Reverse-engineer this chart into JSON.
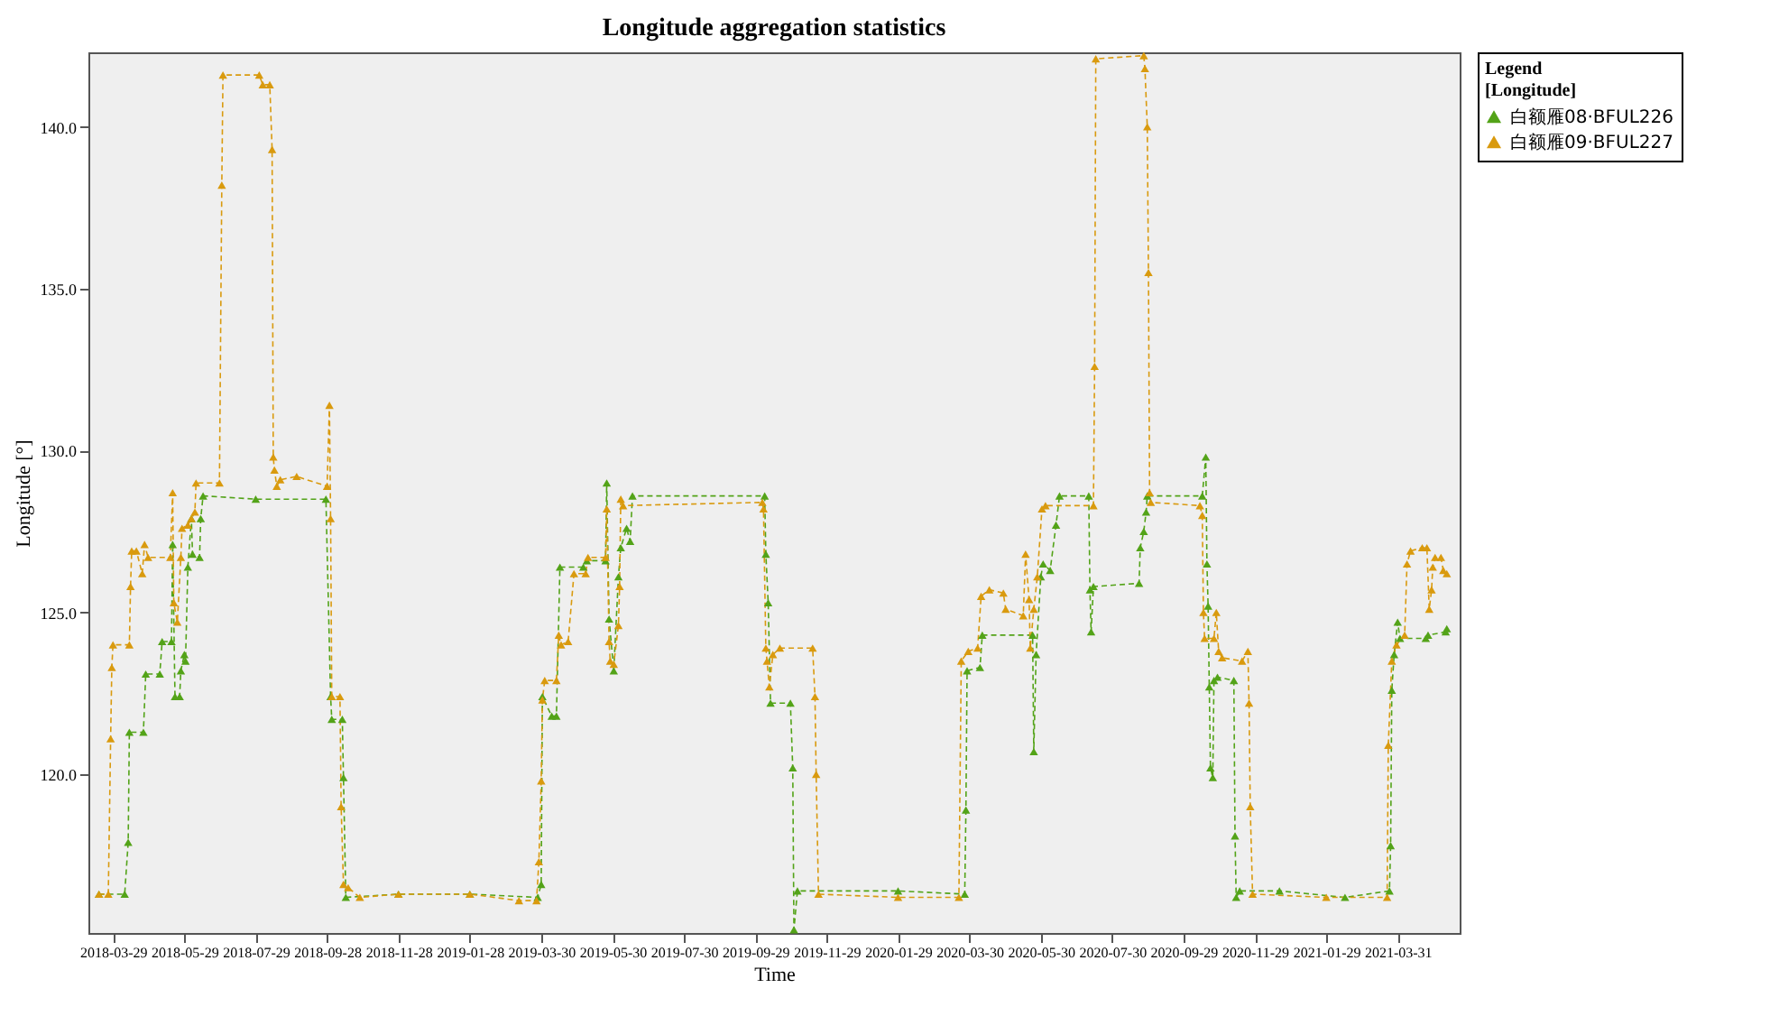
{
  "chart_data": {
    "type": "line",
    "title": "Longitude aggregation statistics",
    "xlabel": "Time",
    "ylabel": "Longitude [°]",
    "legend_title": "Legend\n[Longitude]",
    "legend": "right",
    "marker": "triangle",
    "line_style": "dashed",
    "grid": false,
    "xlim": [
      "2018-03-08",
      "2021-05-23"
    ],
    "xticks": [
      "2018-03-29",
      "2018-05-29",
      "2018-07-29",
      "2018-09-28",
      "2018-11-28",
      "2019-01-28",
      "2019-03-30",
      "2019-05-30",
      "2019-07-30",
      "2019-09-29",
      "2019-11-29",
      "2020-01-29",
      "2020-03-30",
      "2020-05-30",
      "2020-07-30",
      "2020-09-29",
      "2020-11-29",
      "2021-01-29",
      "2021-03-31"
    ],
    "ylim": [
      115.1,
      142.3
    ],
    "yticks": [
      {
        "value": 120,
        "label": "120.0"
      },
      {
        "value": 125,
        "label": "125.0"
      },
      {
        "value": 130,
        "label": "130.0"
      },
      {
        "value": 135,
        "label": "135.0"
      },
      {
        "value": 140,
        "label": "140.0"
      }
    ],
    "series": [
      {
        "name": "白额雁08·BFUL226",
        "color": "#53a318",
        "x": [
          "2018-03-17",
          "2018-04-08",
          "2018-04-11",
          "2018-04-12",
          "2018-04-24",
          "2018-04-26",
          "2018-05-08",
          "2018-05-10",
          "2018-05-18",
          "2018-05-19",
          "2018-05-21",
          "2018-05-25",
          "2018-05-26",
          "2018-05-29",
          "2018-05-30",
          "2018-06-01",
          "2018-06-04",
          "2018-06-05",
          "2018-06-11",
          "2018-06-12",
          "2018-06-14",
          "2018-07-29",
          "2018-09-27",
          "2018-10-01",
          "2018-10-02",
          "2018-10-11",
          "2018-10-12",
          "2018-10-14",
          "2018-11-28",
          "2019-01-28",
          "2019-03-27",
          "2019-03-30",
          "2019-03-31",
          "2019-04-08",
          "2019-04-12",
          "2019-04-15",
          "2019-05-05",
          "2019-05-08",
          "2019-05-24",
          "2019-05-25",
          "2019-05-27",
          "2019-05-31",
          "2019-06-04",
          "2019-06-06",
          "2019-06-11",
          "2019-06-14",
          "2019-06-16",
          "2019-10-07",
          "2019-10-08",
          "2019-10-10",
          "2019-10-12",
          "2019-10-29",
          "2019-10-31",
          "2019-11-01",
          "2019-11-04",
          "2020-01-29",
          "2020-03-26",
          "2020-03-27",
          "2020-03-28",
          "2020-04-08",
          "2020-04-10",
          "2020-05-23",
          "2020-05-24",
          "2020-05-26",
          "2020-05-30",
          "2020-06-01",
          "2020-06-07",
          "2020-06-12",
          "2020-06-15",
          "2020-07-10",
          "2020-07-11",
          "2020-07-12",
          "2020-07-14",
          "2020-08-22",
          "2020-08-23",
          "2020-08-26",
          "2020-08-28",
          "2020-08-29",
          "2020-10-15",
          "2020-10-18",
          "2020-10-19",
          "2020-10-20",
          "2020-10-21",
          "2020-10-22",
          "2020-10-24",
          "2020-10-25",
          "2020-10-28",
          "2020-11-11",
          "2020-11-12",
          "2020-11-13",
          "2020-11-16",
          "2020-12-20",
          "2021-02-14",
          "2021-03-24",
          "2021-03-25",
          "2021-03-26",
          "2021-03-28",
          "2021-03-31",
          "2021-04-02",
          "2021-04-24",
          "2021-04-26",
          "2021-05-11",
          "2021-05-12"
        ],
        "values": [
          116.3,
          116.3,
          117.9,
          121.3,
          121.3,
          123.1,
          123.1,
          124.1,
          124.1,
          127.1,
          122.4,
          122.4,
          123.2,
          123.7,
          123.5,
          126.4,
          127.9,
          126.8,
          126.7,
          127.9,
          128.6,
          128.5,
          128.5,
          122.4,
          121.7,
          121.7,
          119.9,
          116.2,
          116.3,
          116.3,
          116.2,
          116.6,
          122.4,
          121.8,
          121.8,
          126.4,
          126.4,
          126.6,
          126.6,
          129.0,
          124.8,
          123.2,
          126.1,
          127.0,
          127.6,
          127.2,
          128.6,
          128.6,
          126.8,
          125.3,
          122.2,
          122.2,
          120.2,
          115.2,
          116.4,
          116.4,
          116.3,
          118.9,
          123.2,
          123.3,
          124.3,
          124.3,
          120.7,
          123.7,
          126.1,
          126.5,
          126.3,
          127.7,
          128.6,
          128.6,
          125.7,
          124.4,
          125.8,
          125.9,
          127.0,
          127.5,
          128.1,
          128.6,
          128.6,
          129.8,
          126.5,
          125.2,
          122.7,
          120.2,
          119.9,
          122.9,
          123.0,
          122.9,
          118.1,
          116.2,
          116.4,
          116.4,
          116.2,
          116.4,
          117.8,
          122.6,
          123.7,
          124.7,
          124.2,
          124.2,
          124.3,
          124.4,
          124.5
        ]
      },
      {
        "name": "白额雁09·BFUL227",
        "color": "#d99a0e",
        "x": [
          "2018-03-17",
          "2018-03-25",
          "2018-03-27",
          "2018-03-28",
          "2018-03-29",
          "2018-04-12",
          "2018-04-13",
          "2018-04-14",
          "2018-04-18",
          "2018-04-23",
          "2018-04-25",
          "2018-04-28",
          "2018-05-17",
          "2018-05-19",
          "2018-05-20",
          "2018-05-23",
          "2018-05-26",
          "2018-05-27",
          "2018-06-01",
          "2018-06-04",
          "2018-06-07",
          "2018-06-08",
          "2018-06-28",
          "2018-06-30",
          "2018-07-01",
          "2018-08-01",
          "2018-08-04",
          "2018-08-10",
          "2018-08-12",
          "2018-08-13",
          "2018-08-14",
          "2018-08-16",
          "2018-08-19",
          "2018-09-02",
          "2018-09-28",
          "2018-09-30",
          "2018-10-01",
          "2018-10-02",
          "2018-10-09",
          "2018-10-10",
          "2018-10-12",
          "2018-10-16",
          "2018-10-26",
          "2018-11-28",
          "2019-01-28",
          "2019-03-11",
          "2019-03-26",
          "2019-03-28",
          "2019-03-30",
          "2019-03-31",
          "2019-04-02",
          "2019-04-12",
          "2019-04-14",
          "2019-04-16",
          "2019-04-22",
          "2019-04-27",
          "2019-05-07",
          "2019-05-09",
          "2019-05-24",
          "2019-05-25",
          "2019-05-27",
          "2019-05-28",
          "2019-05-31",
          "2019-06-04",
          "2019-06-05",
          "2019-06-06",
          "2019-06-08",
          "2019-10-05",
          "2019-10-06",
          "2019-10-08",
          "2019-10-09",
          "2019-10-11",
          "2019-10-14",
          "2019-10-20",
          "2019-11-17",
          "2019-11-19",
          "2019-11-20",
          "2019-11-22",
          "2020-01-29",
          "2020-03-21",
          "2020-03-23",
          "2020-03-29",
          "2020-04-06",
          "2020-04-09",
          "2020-04-16",
          "2020-04-28",
          "2020-04-30",
          "2020-05-15",
          "2020-05-17",
          "2020-05-20",
          "2020-05-21",
          "2020-05-24",
          "2020-05-27",
          "2020-05-31",
          "2020-06-03",
          "2020-07-14",
          "2020-07-15",
          "2020-07-16",
          "2020-08-26",
          "2020-08-27",
          "2020-08-29",
          "2020-08-30",
          "2020-08-31",
          "2020-09-01",
          "2020-10-13",
          "2020-10-15",
          "2020-10-16",
          "2020-10-17",
          "2020-10-25",
          "2020-10-27",
          "2020-10-29",
          "2020-11-01",
          "2020-11-18",
          "2020-11-23",
          "2020-11-24",
          "2020-11-25",
          "2020-11-27",
          "2021-01-29",
          "2021-03-22",
          "2021-03-23",
          "2021-03-26",
          "2021-03-30",
          "2021-04-06",
          "2021-04-08",
          "2021-04-11",
          "2021-04-21",
          "2021-04-25",
          "2021-04-27",
          "2021-04-29",
          "2021-04-30",
          "2021-05-02",
          "2021-05-07",
          "2021-05-09",
          "2021-05-12"
        ],
        "values": [
          116.3,
          116.3,
          121.1,
          123.3,
          124.0,
          124.0,
          125.8,
          126.9,
          126.9,
          126.2,
          127.1,
          126.7,
          126.7,
          128.7,
          125.3,
          124.7,
          126.7,
          127.6,
          127.7,
          127.9,
          128.1,
          129.0,
          129.0,
          138.2,
          141.6,
          141.6,
          141.3,
          141.3,
          139.3,
          129.8,
          129.4,
          128.9,
          129.1,
          129.2,
          128.9,
          131.4,
          127.9,
          122.4,
          122.4,
          119.0,
          116.6,
          116.5,
          116.2,
          116.3,
          116.3,
          116.1,
          116.1,
          117.3,
          119.8,
          122.3,
          122.9,
          122.9,
          124.3,
          124.0,
          124.1,
          126.2,
          126.2,
          126.7,
          126.7,
          128.2,
          124.1,
          123.5,
          123.4,
          124.6,
          125.8,
          128.5,
          128.3,
          128.4,
          128.2,
          123.9,
          123.5,
          122.7,
          123.7,
          123.9,
          123.9,
          122.4,
          120.0,
          116.3,
          116.2,
          116.2,
          123.5,
          123.8,
          123.9,
          125.5,
          125.7,
          125.6,
          125.1,
          124.9,
          126.8,
          125.4,
          123.9,
          125.1,
          126.1,
          128.2,
          128.3,
          128.3,
          132.6,
          142.1,
          142.2,
          141.8,
          140.0,
          135.5,
          128.7,
          128.4,
          128.3,
          128.0,
          125.0,
          124.2,
          124.2,
          125.0,
          123.8,
          123.6,
          123.5,
          123.8,
          122.2,
          119.0,
          116.3,
          116.2,
          116.2,
          120.9,
          123.5,
          124.0,
          124.3,
          126.5,
          126.9,
          127.0,
          127.0,
          125.1,
          125.7,
          126.4,
          126.7,
          126.7,
          126.3,
          126.2
        ]
      }
    ]
  }
}
